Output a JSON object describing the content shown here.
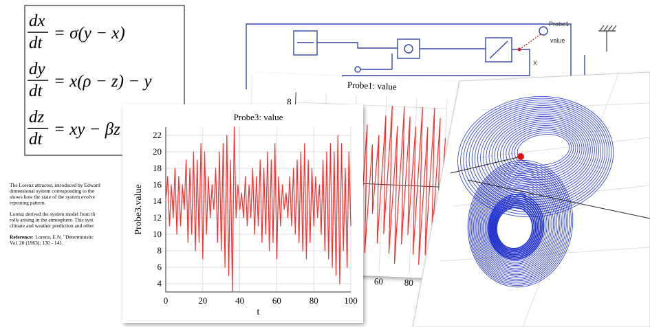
{
  "equations": [
    {
      "numerator": "dx",
      "denominator": "dt",
      "rhs": "= σ(y − x)"
    },
    {
      "numerator": "dy",
      "denominator": "dt",
      "rhs": "= x(ρ − z) − y"
    },
    {
      "numerator": "dz",
      "denominator": "dt",
      "rhs": "= xy − βz"
    }
  ],
  "description": {
    "paragraphs": [
      [
        "The Lorenz attractor, introduced by Edward",
        "dimensional system corresponding to the",
        "shows how the state of the system evolve",
        "repeating pattern."
      ],
      [
        "Lorenz derived the system model from th",
        "rolls arising in the atmosphere. This syst",
        "climate and weather prediction and other"
      ]
    ],
    "reference": {
      "label": "Reference:",
      "lines": [
        "Lorenz, E.N. \"Deterministic",
        "Vol. 20 (1963): 130 - 141."
      ]
    }
  },
  "diagram": {
    "probe_name": "Probe1",
    "probe_output": "value",
    "signal_label": "X"
  },
  "chart_data": [
    {
      "type": "line",
      "title": "Probe3: value",
      "x_label": "t",
      "y_label": "Probe3.value",
      "color": "#ff2a2a",
      "grid": true,
      "x": [
        0,
        1,
        2,
        3,
        4,
        5,
        6,
        7,
        8,
        9,
        10,
        11,
        12,
        13,
        14,
        15,
        16,
        17,
        18,
        19,
        20,
        21,
        22,
        23,
        24,
        25,
        26,
        27,
        28,
        29,
        30,
        31,
        32,
        33,
        34,
        35,
        36,
        37,
        38,
        39,
        40,
        41,
        42,
        43,
        44,
        45,
        46,
        47,
        48,
        49,
        50,
        51,
        52,
        53,
        54,
        55,
        56,
        57,
        58,
        59,
        60,
        61,
        62,
        63,
        64,
        65,
        66,
        67,
        68,
        69,
        70,
        71,
        72,
        73,
        74,
        75,
        76,
        77,
        78,
        79,
        80,
        81,
        82,
        83,
        84,
        85,
        86,
        87,
        88,
        89,
        90,
        91,
        92,
        93,
        94,
        95,
        96,
        97,
        98,
        99,
        100
      ],
      "values": [
        14,
        17,
        11,
        16,
        12,
        18,
        10,
        17,
        11,
        16,
        13,
        19,
        9,
        18,
        10,
        20,
        8,
        19,
        9,
        21,
        7,
        20,
        10,
        17,
        12,
        16,
        13,
        18,
        9,
        20,
        8,
        21,
        6,
        22,
        5,
        19,
        3,
        23,
        12,
        16,
        13,
        15,
        12,
        17,
        11,
        16,
        12,
        18,
        10,
        17,
        11,
        19,
        9,
        18,
        10,
        20,
        8,
        19,
        9,
        21,
        7,
        17,
        11,
        16,
        13,
        15,
        12,
        17,
        11,
        18,
        10,
        19,
        9,
        20,
        8,
        21,
        7,
        19,
        9,
        18,
        11,
        17,
        12,
        16,
        10,
        19,
        8,
        20,
        7,
        21,
        6,
        20,
        5,
        22,
        4,
        21,
        8,
        18,
        6,
        20,
        11
      ],
      "xlim": [
        0,
        100
      ],
      "ylim": [
        3,
        23
      ],
      "xticks": [
        0,
        20,
        40,
        60,
        80,
        100
      ],
      "yticks": [
        4,
        6,
        8,
        10,
        12,
        14,
        16,
        18,
        20,
        22
      ]
    },
    {
      "type": "line",
      "title": "Probe1: value",
      "color": "#ff2a2a",
      "grid": true,
      "x": [
        0,
        2,
        4,
        6,
        8,
        10,
        12,
        14,
        16,
        18,
        20,
        22,
        24,
        26,
        28,
        30,
        32,
        34,
        36,
        38,
        40,
        42,
        44,
        46,
        48,
        50,
        52,
        54,
        56,
        58,
        60,
        62,
        64,
        66,
        68,
        70,
        72,
        74,
        76,
        78,
        80,
        82,
        84,
        86,
        88,
        90,
        92,
        94,
        96,
        98,
        100
      ],
      "values": [
        2,
        -3,
        4,
        -5,
        6,
        -6,
        5,
        -4,
        3,
        -3,
        4,
        -5,
        6,
        -7,
        7,
        -6,
        5,
        -6,
        7,
        -8,
        3,
        -4,
        5,
        -6,
        6,
        -7,
        4,
        -3,
        5,
        -6,
        7,
        -5,
        8,
        -7,
        6,
        -8,
        8,
        -6,
        7,
        -5,
        6,
        -7,
        8,
        -8,
        6,
        -7,
        8,
        -6,
        7,
        -8,
        5
      ],
      "xlim": [
        0,
        100
      ],
      "ylim": [
        -9,
        9
      ],
      "xticks": [
        0,
        20,
        40,
        60,
        80,
        100
      ],
      "yticks": [
        8
      ]
    }
  ]
}
